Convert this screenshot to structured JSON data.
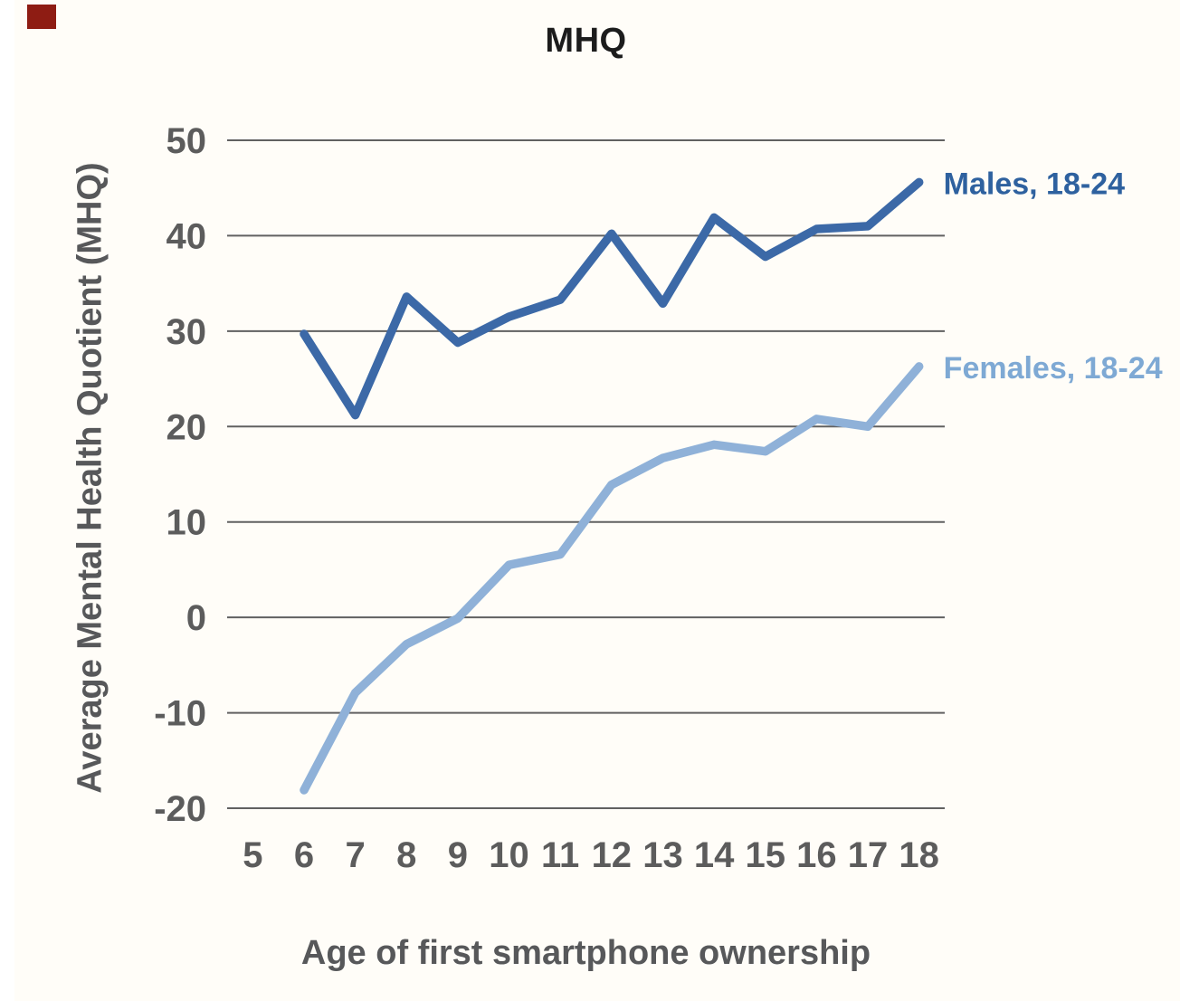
{
  "page": {
    "background": "#fffdf8",
    "left_strip_color": "#ffffff",
    "marker_color": "#8e1c13"
  },
  "chart_data": {
    "type": "line",
    "title": "MHQ",
    "xlabel": "Age of first smartphone ownership",
    "ylabel": "Average Mental Health Quotient (MHQ)",
    "x_ticks": [
      5,
      6,
      7,
      8,
      9,
      10,
      11,
      12,
      13,
      14,
      15,
      16,
      17,
      18
    ],
    "x_tick_labels": [
      "5",
      "6",
      "7",
      "8",
      "9",
      "10",
      "11",
      "12",
      "13",
      "14",
      "15",
      "16",
      "17",
      "18"
    ],
    "y_ticks": [
      50,
      40,
      30,
      20,
      10,
      0,
      -10,
      -20
    ],
    "y_tick_labels": [
      "50",
      "40",
      "30",
      "20",
      "10",
      "0",
      "-10",
      "-20"
    ],
    "xlim": [
      4.5,
      18.5
    ],
    "ylim": [
      -20,
      50
    ],
    "grid": true,
    "gridline_color": "#616161",
    "tick_label_color": "#5c5c5c",
    "legend_position": "line-end-labels-right",
    "x": [
      6,
      7,
      8,
      9,
      10,
      11,
      12,
      13,
      14,
      15,
      16,
      17,
      18
    ],
    "series": [
      {
        "name": "Males, 18-24",
        "color": "#3c69a7",
        "label_color": "#2e619f",
        "values": [
          29.7,
          21.2,
          33.6,
          28.8,
          31.5,
          33.3,
          40.2,
          32.9,
          41.9,
          37.8,
          40.7,
          41.0,
          45.6
        ]
      },
      {
        "name": "Females, 18-24",
        "color": "#8fb1d8",
        "label_color": "#7ea9d4",
        "values": [
          -18.1,
          -7.9,
          -2.8,
          -0.1,
          5.5,
          6.6,
          13.9,
          16.7,
          18.1,
          17.4,
          20.8,
          20.0,
          26.3
        ]
      }
    ]
  }
}
